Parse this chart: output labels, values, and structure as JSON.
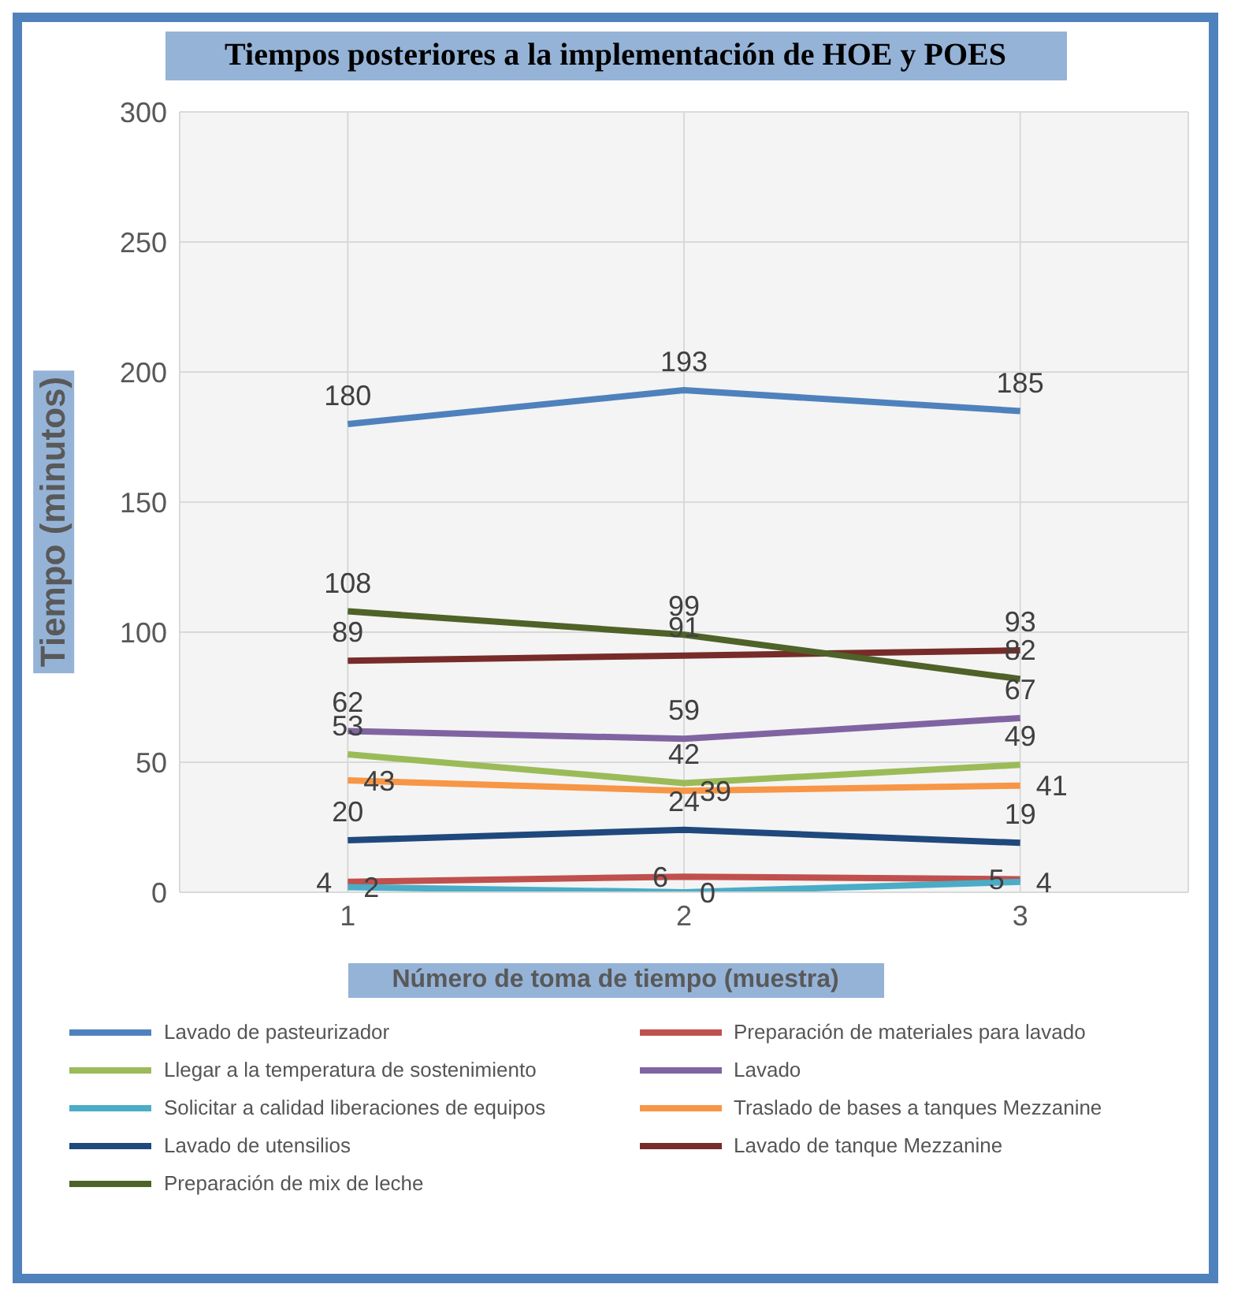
{
  "chart_data": {
    "type": "line",
    "title": "Tiempos posteriores a la implementación de HOE y POES",
    "xlabel": "Número de toma de tiempo (muestra)",
    "ylabel": "Tiempo (minutos)",
    "categories": [
      "1",
      "2",
      "3"
    ],
    "series": [
      {
        "name": "Lavado de pasteurizador",
        "color": "#4f81bd",
        "values": [
          180,
          193,
          185
        ]
      },
      {
        "name": "Preparación de materiales para lavado",
        "color": "#c0504d",
        "values": [
          4,
          6,
          5
        ]
      },
      {
        "name": "Llegar a la temperatura de sostenimiento",
        "color": "#9bbb59",
        "values": [
          53,
          42,
          49
        ]
      },
      {
        "name": "Lavado",
        "color": "#8064a2",
        "values": [
          62,
          59,
          67
        ]
      },
      {
        "name": "Solicitar a calidad liberaciones de equipos",
        "color": "#4bacc6",
        "values": [
          2,
          0,
          4
        ]
      },
      {
        "name": "Traslado de bases a tanques Mezzanine",
        "color": "#f79646",
        "values": [
          43,
          39,
          41
        ]
      },
      {
        "name": "Lavado de utensilios",
        "color": "#1f497d",
        "values": [
          20,
          24,
          19
        ]
      },
      {
        "name": "Lavado de tanque Mezzanine",
        "color": "#772c2a",
        "values": [
          89,
          91,
          93
        ]
      },
      {
        "name": "Preparación de mix de leche",
        "color": "#4f6228",
        "values": [
          108,
          99,
          82
        ]
      }
    ],
    "ylim": [
      0,
      300
    ],
    "yticks": [
      0,
      50,
      100,
      150,
      200,
      250,
      300
    ],
    "grid": true,
    "legend": "bottom",
    "marker": "none",
    "line_style": "solid",
    "data_labels": true
  }
}
